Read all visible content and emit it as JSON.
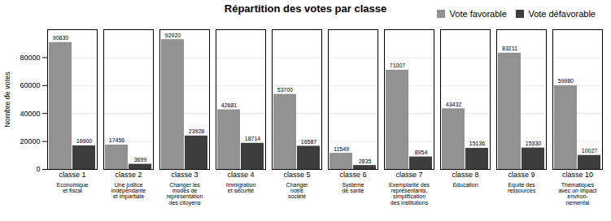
{
  "chart_data": {
    "type": "bar",
    "title": "Répartition des votes par classe",
    "ylabel": "Nombre de votes",
    "categories": [
      "classe 1",
      "classe 2",
      "classe 3",
      "classe 4",
      "classe 5",
      "classe 6",
      "classe 7",
      "classe 8",
      "classe 9",
      "classe 10"
    ],
    "series": [
      {
        "name": "Vote favorable",
        "color": "#919191",
        "values": [
          90830,
          17456,
          92920,
          42681,
          53700,
          11549,
          71007,
          43432,
          83211,
          59980
        ]
      },
      {
        "name": "Vote défavorable",
        "color": "#3d3d3d",
        "values": [
          16900,
          3699,
          23928,
          18714,
          16587,
          2835,
          8954,
          15136,
          15330,
          10027
        ]
      }
    ],
    "ylim": [
      0,
      100000
    ],
    "yticks": [
      0,
      20000,
      40000,
      60000,
      80000
    ],
    "grid": true,
    "legend": "upper right",
    "data_labels": true,
    "annotations": [
      {
        "x": "classe 1",
        "text": "Economique\net fiscal"
      },
      {
        "x": "classe 2",
        "text": "Une justice\nindépendante\net impartiale"
      },
      {
        "x": "classe 3",
        "text": "Changer les\nmodes de\nreprésentation\ndes citoyens"
      },
      {
        "x": "classe 4",
        "text": "Immigration\net sécurité"
      },
      {
        "x": "classe 5",
        "text": "Changer\nnotre\nsociété"
      },
      {
        "x": "classe 6",
        "text": "Système\nde santé"
      },
      {
        "x": "classe 7",
        "text": "Exemplarité des\nreprésentants,\nsimplification\ndes institutions"
      },
      {
        "x": "classe 8",
        "text": "Education"
      },
      {
        "x": "classe 9",
        "text": "Equité des\nressources"
      },
      {
        "x": "classe 10",
        "text": "Thématiques\navec un impact\nenviron-\nnemental"
      }
    ]
  }
}
